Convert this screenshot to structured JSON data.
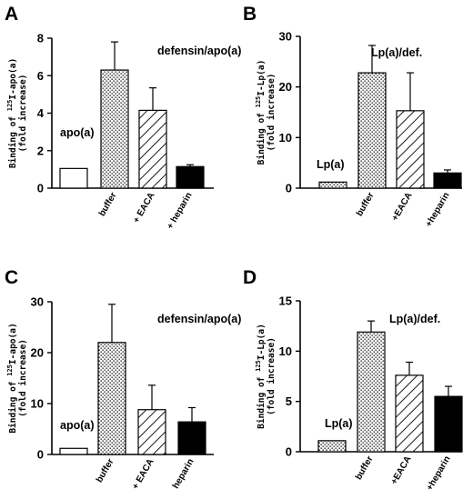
{
  "chart_data": [
    {
      "type": "bar",
      "panel": "A",
      "ylabel_line1_prefix": "Binding of ",
      "ylabel_sup": "125",
      "ylabel_line1_suffix": "I-apo(a)",
      "ylabel_line2": "(fold increase)",
      "ylim": [
        0,
        8
      ],
      "yticks": [
        "0",
        "2",
        "4",
        "6",
        "8"
      ],
      "categories": [
        "",
        "buffer",
        "+ EACA",
        "+ heparin"
      ],
      "values": [
        1.05,
        6.3,
        4.15,
        1.15
      ],
      "errors": [
        0,
        1.5,
        1.2,
        0.1
      ],
      "fills": [
        "white",
        "dots",
        "hatch",
        "black"
      ],
      "annotations": [
        {
          "text": "apo(a)",
          "bar": 0
        },
        {
          "text": "defensin/apo(a)",
          "bar": 1
        }
      ]
    },
    {
      "type": "bar",
      "panel": "B",
      "ylabel_line1_prefix": "Binding of ",
      "ylabel_sup": "125",
      "ylabel_line1_suffix": "I-Lp(a)",
      "ylabel_line2": "(fold increase)",
      "ylim": [
        0,
        30
      ],
      "yticks": [
        "0",
        "10",
        "20",
        "30"
      ],
      "categories": [
        "",
        "buffer",
        "+EACA",
        "+heparin"
      ],
      "values": [
        1.2,
        22.8,
        15.3,
        3.0
      ],
      "errors": [
        0,
        5.4,
        7.5,
        0.6
      ],
      "fills": [
        "dots",
        "dots",
        "hatch",
        "black"
      ],
      "annotations": [
        {
          "text": "Lp(a)",
          "bar": 0
        },
        {
          "text": "Lp(a)/def.",
          "bar": 1
        }
      ]
    },
    {
      "type": "bar",
      "panel": "C",
      "ylabel_line1_prefix": "Binding of ",
      "ylabel_sup": "125",
      "ylabel_line1_suffix": "I-apo(a)",
      "ylabel_line2": "(fold increase)",
      "ylim": [
        0,
        30
      ],
      "yticks": [
        "0",
        "10",
        "20",
        "30"
      ],
      "categories": [
        "",
        "buffer",
        "+ EACA",
        "+ heparin"
      ],
      "values": [
        1.2,
        22.0,
        8.8,
        6.4
      ],
      "errors": [
        0,
        7.5,
        4.8,
        2.8
      ],
      "fills": [
        "white",
        "dots",
        "hatch",
        "black"
      ],
      "annotations": [
        {
          "text": "apo(a)",
          "bar": 0
        },
        {
          "text": "defensin/apo(a)",
          "bar": 1
        }
      ]
    },
    {
      "type": "bar",
      "panel": "D",
      "ylabel_line1_prefix": "Binding of ",
      "ylabel_sup": "125",
      "ylabel_line1_suffix": "I-Lp(a)",
      "ylabel_line2": "(fold increase)",
      "ylim": [
        0,
        15
      ],
      "yticks": [
        "0",
        "5",
        "10",
        "15"
      ],
      "categories": [
        "",
        "buffer",
        "+EACA",
        "+heparin"
      ],
      "values": [
        1.1,
        11.9,
        7.6,
        5.5
      ],
      "errors": [
        0,
        1.1,
        1.3,
        1.0
      ],
      "fills": [
        "dots",
        "dots",
        "hatch",
        "black"
      ],
      "annotations": [
        {
          "text": "Lp(a)",
          "bar": 0
        },
        {
          "text": "Lp(a)/def.",
          "bar": 1
        }
      ]
    }
  ]
}
